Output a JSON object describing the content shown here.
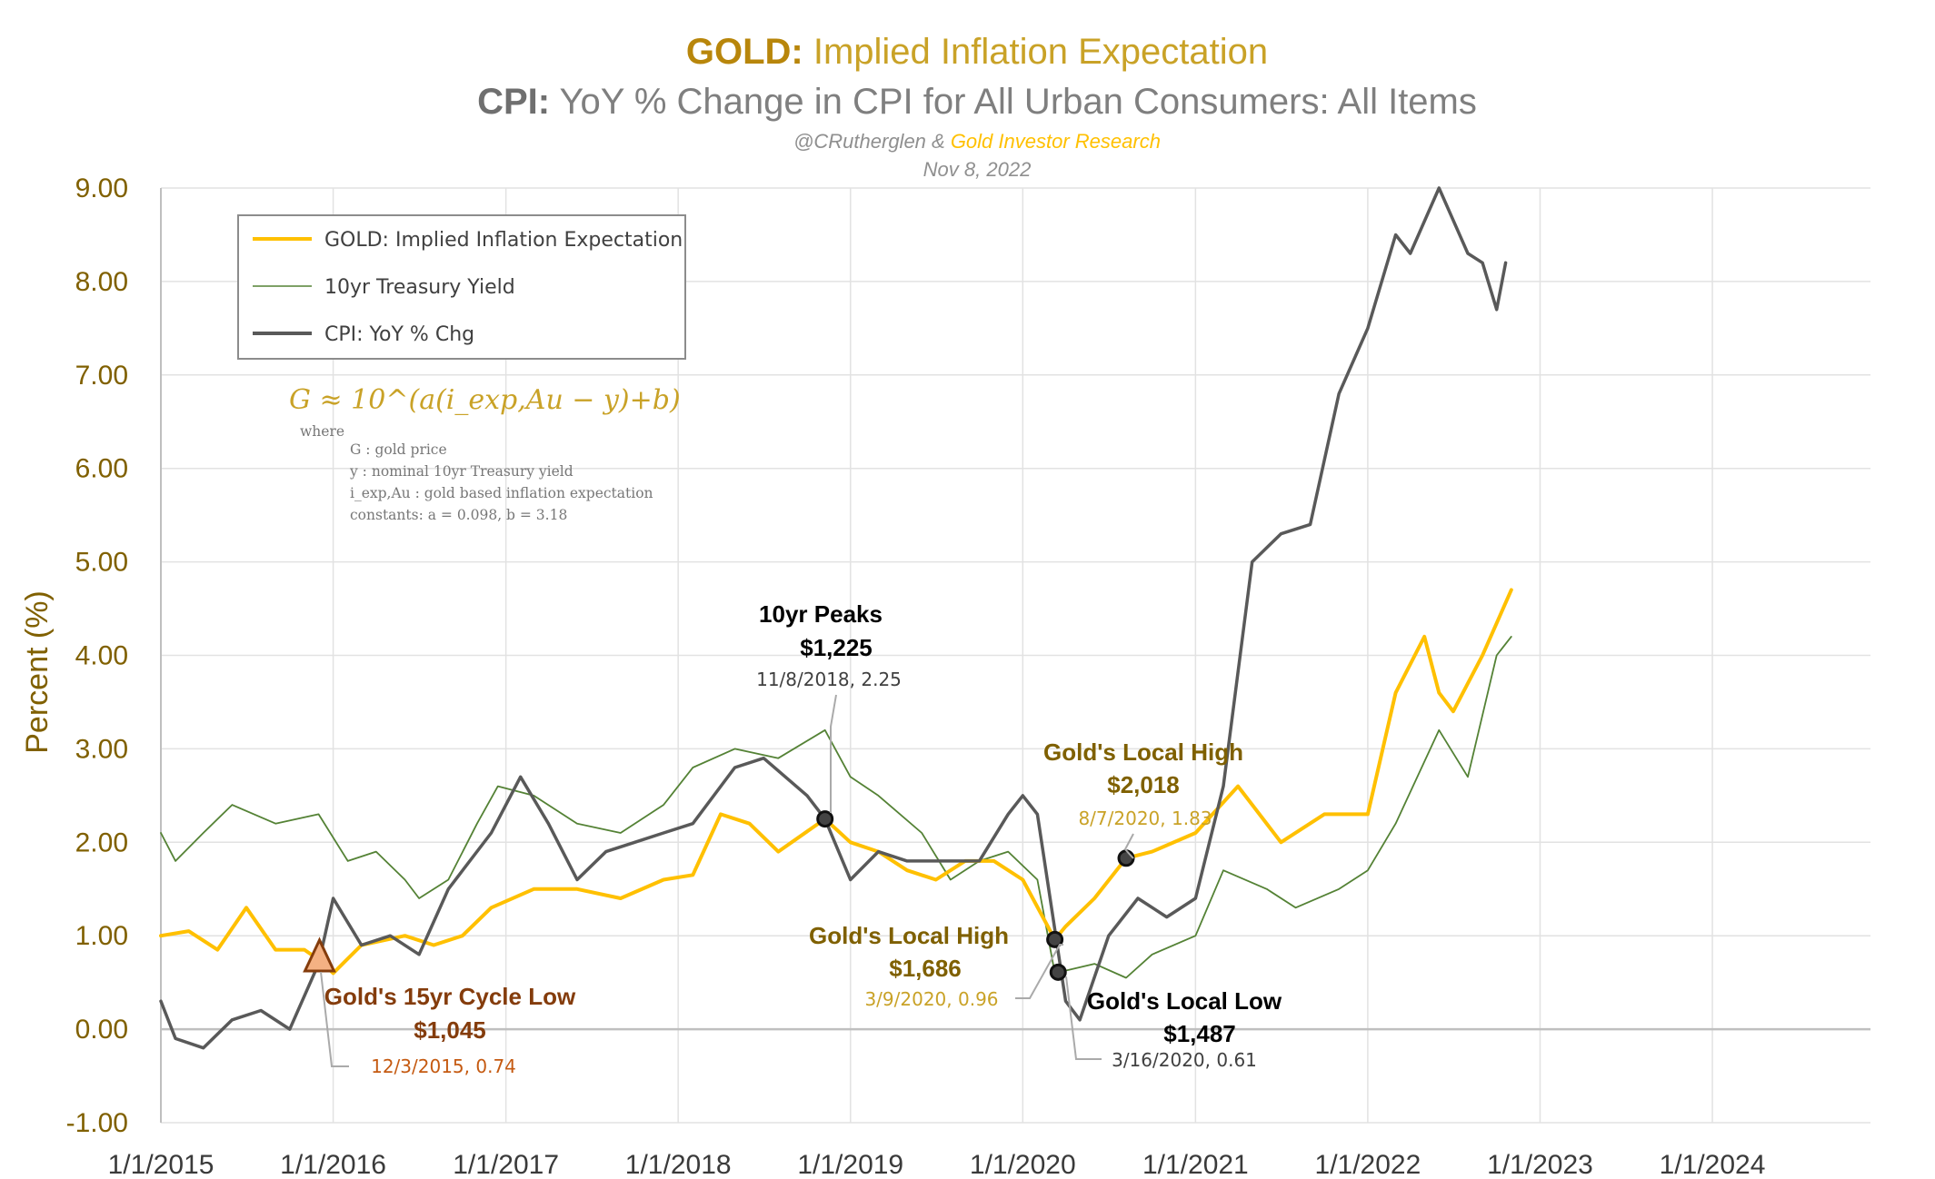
{
  "titles": {
    "line1_prefix": "GOLD:",
    "line1_rest": " Implied Inflation Expectation",
    "line2_prefix": "CPI:",
    "line2_rest": " YoY % Change in CPI for All Urban Consumers: All Items",
    "credit_author": "@CRutherglen &",
    "credit_org": " Gold Investor Research",
    "date": "Nov 8, 2022"
  },
  "colors": {
    "gold": "#FFC000",
    "gold_text": "#806000",
    "gold_light_text": "#C9A227",
    "treasury": "#548235",
    "cpi": "#595959",
    "cycle_low": "#843C0C",
    "cycle_low_sub": "#C55A11"
  },
  "chart_data": {
    "type": "line",
    "title": "GOLD: Implied Inflation Expectation / CPI: YoY % Change in CPI for All Urban Consumers: All Items",
    "ylabel": "Percent (%)",
    "xlabel": "",
    "ylim": [
      -1,
      9
    ],
    "xlim": [
      "2015-01-01",
      "2024-12-01"
    ],
    "grid": true,
    "legend_position": "top-left",
    "y_ticks": [
      "9.00",
      "8.00",
      "7.00",
      "6.00",
      "5.00",
      "4.00",
      "3.00",
      "2.00",
      "1.00",
      "0.00",
      "-1.00"
    ],
    "x_ticks": [
      "1/1/2015",
      "1/1/2016",
      "1/1/2017",
      "1/1/2018",
      "1/1/2019",
      "1/1/2020",
      "1/1/2021",
      "1/1/2022",
      "1/1/2023",
      "1/1/2024"
    ],
    "series": [
      {
        "name": "GOLD: Implied Inflation Expectation",
        "color": "#FFC000",
        "points": [
          [
            "2015-01-01",
            1.0
          ],
          [
            "2015-03-01",
            1.05
          ],
          [
            "2015-05-01",
            0.85
          ],
          [
            "2015-07-01",
            1.3
          ],
          [
            "2015-09-01",
            0.85
          ],
          [
            "2015-11-01",
            0.85
          ],
          [
            "2015-12-03",
            0.74
          ],
          [
            "2016-01-01",
            0.6
          ],
          [
            "2016-03-01",
            0.9
          ],
          [
            "2016-06-01",
            1.0
          ],
          [
            "2016-08-01",
            0.9
          ],
          [
            "2016-10-01",
            1.0
          ],
          [
            "2016-12-01",
            1.3
          ],
          [
            "2017-03-01",
            1.5
          ],
          [
            "2017-06-01",
            1.5
          ],
          [
            "2017-09-01",
            1.4
          ],
          [
            "2017-12-01",
            1.6
          ],
          [
            "2018-02-01",
            1.65
          ],
          [
            "2018-04-01",
            2.3
          ],
          [
            "2018-06-01",
            2.2
          ],
          [
            "2018-08-01",
            1.9
          ],
          [
            "2018-11-08",
            2.25
          ],
          [
            "2019-01-01",
            2.0
          ],
          [
            "2019-03-01",
            1.9
          ],
          [
            "2019-05-01",
            1.7
          ],
          [
            "2019-07-01",
            1.6
          ],
          [
            "2019-09-01",
            1.8
          ],
          [
            "2019-11-01",
            1.8
          ],
          [
            "2020-01-01",
            1.6
          ],
          [
            "2020-03-09",
            0.96
          ],
          [
            "2020-04-01",
            1.1
          ],
          [
            "2020-06-01",
            1.4
          ],
          [
            "2020-08-07",
            1.83
          ],
          [
            "2020-10-01",
            1.9
          ],
          [
            "2021-01-01",
            2.1
          ],
          [
            "2021-04-01",
            2.6
          ],
          [
            "2021-07-01",
            2.0
          ],
          [
            "2021-10-01",
            2.3
          ],
          [
            "2022-01-01",
            2.3
          ],
          [
            "2022-03-01",
            3.6
          ],
          [
            "2022-05-01",
            4.2
          ],
          [
            "2022-06-01",
            3.6
          ],
          [
            "2022-07-01",
            3.4
          ],
          [
            "2022-09-01",
            4.0
          ],
          [
            "2022-11-01",
            4.7
          ]
        ]
      },
      {
        "name": "10yr Treasury Yield",
        "color": "#548235",
        "points": [
          [
            "2015-01-01",
            2.1
          ],
          [
            "2015-02-01",
            1.8
          ],
          [
            "2015-04-01",
            2.1
          ],
          [
            "2015-06-01",
            2.4
          ],
          [
            "2015-09-01",
            2.2
          ],
          [
            "2015-12-01",
            2.3
          ],
          [
            "2016-02-01",
            1.8
          ],
          [
            "2016-04-01",
            1.9
          ],
          [
            "2016-06-01",
            1.6
          ],
          [
            "2016-07-01",
            1.4
          ],
          [
            "2016-09-01",
            1.6
          ],
          [
            "2016-11-01",
            2.2
          ],
          [
            "2016-12-15",
            2.6
          ],
          [
            "2017-03-01",
            2.5
          ],
          [
            "2017-06-01",
            2.2
          ],
          [
            "2017-09-01",
            2.1
          ],
          [
            "2017-12-01",
            2.4
          ],
          [
            "2018-02-01",
            2.8
          ],
          [
            "2018-05-01",
            3.0
          ],
          [
            "2018-08-01",
            2.9
          ],
          [
            "2018-11-08",
            3.2
          ],
          [
            "2019-01-01",
            2.7
          ],
          [
            "2019-03-01",
            2.5
          ],
          [
            "2019-06-01",
            2.1
          ],
          [
            "2019-08-01",
            1.6
          ],
          [
            "2019-10-01",
            1.8
          ],
          [
            "2019-12-01",
            1.9
          ],
          [
            "2020-02-01",
            1.6
          ],
          [
            "2020-03-09",
            0.6
          ],
          [
            "2020-06-01",
            0.7
          ],
          [
            "2020-08-07",
            0.55
          ],
          [
            "2020-10-01",
            0.8
          ],
          [
            "2021-01-01",
            1.0
          ],
          [
            "2021-03-01",
            1.7
          ],
          [
            "2021-06-01",
            1.5
          ],
          [
            "2021-08-01",
            1.3
          ],
          [
            "2021-11-01",
            1.5
          ],
          [
            "2022-01-01",
            1.7
          ],
          [
            "2022-03-01",
            2.2
          ],
          [
            "2022-06-01",
            3.2
          ],
          [
            "2022-08-01",
            2.7
          ],
          [
            "2022-10-01",
            4.0
          ],
          [
            "2022-11-01",
            4.2
          ]
        ]
      },
      {
        "name": "CPI: YoY % Chg",
        "color": "#595959",
        "points": [
          [
            "2015-01-01",
            0.3
          ],
          [
            "2015-02-01",
            -0.1
          ],
          [
            "2015-04-01",
            -0.2
          ],
          [
            "2015-06-01",
            0.1
          ],
          [
            "2015-08-01",
            0.2
          ],
          [
            "2015-10-01",
            0.0
          ],
          [
            "2015-12-01",
            0.7
          ],
          [
            "2016-01-01",
            1.4
          ],
          [
            "2016-03-01",
            0.9
          ],
          [
            "2016-05-01",
            1.0
          ],
          [
            "2016-07-01",
            0.8
          ],
          [
            "2016-09-01",
            1.5
          ],
          [
            "2016-12-01",
            2.1
          ],
          [
            "2017-02-01",
            2.7
          ],
          [
            "2017-04-01",
            2.2
          ],
          [
            "2017-06-01",
            1.6
          ],
          [
            "2017-08-01",
            1.9
          ],
          [
            "2017-10-01",
            2.0
          ],
          [
            "2017-12-01",
            2.1
          ],
          [
            "2018-02-01",
            2.2
          ],
          [
            "2018-05-01",
            2.8
          ],
          [
            "2018-07-01",
            2.9
          ],
          [
            "2018-10-01",
            2.5
          ],
          [
            "2018-11-08",
            2.25
          ],
          [
            "2019-01-01",
            1.6
          ],
          [
            "2019-03-01",
            1.9
          ],
          [
            "2019-05-01",
            1.8
          ],
          [
            "2019-07-01",
            1.8
          ],
          [
            "2019-10-01",
            1.8
          ],
          [
            "2019-12-01",
            2.3
          ],
          [
            "2020-01-01",
            2.5
          ],
          [
            "2020-02-01",
            2.3
          ],
          [
            "2020-04-01",
            0.3
          ],
          [
            "2020-05-01",
            0.1
          ],
          [
            "2020-07-01",
            1.0
          ],
          [
            "2020-09-01",
            1.4
          ],
          [
            "2020-11-01",
            1.2
          ],
          [
            "2021-01-01",
            1.4
          ],
          [
            "2021-03-01",
            2.6
          ],
          [
            "2021-05-01",
            5.0
          ],
          [
            "2021-07-01",
            5.3
          ],
          [
            "2021-09-01",
            5.4
          ],
          [
            "2021-11-01",
            6.8
          ],
          [
            "2022-01-01",
            7.5
          ],
          [
            "2022-03-01",
            8.5
          ],
          [
            "2022-04-01",
            8.3
          ],
          [
            "2022-06-01",
            9.0
          ],
          [
            "2022-08-01",
            8.3
          ],
          [
            "2022-09-01",
            8.2
          ],
          [
            "2022-10-01",
            7.7
          ],
          [
            "2022-10-20",
            8.2
          ]
        ]
      }
    ],
    "annotations": {
      "formula_main": "G ≈ 10^(a(i_exp,Au − y)+b)",
      "formula_where": "where",
      "formula_lines": [
        "G : gold price",
        "y : nominal 10yr Treasury yield",
        "i_exp,Au : gold based inflation expectation",
        "constants: a = 0.098, b = 3.18"
      ],
      "peak10": {
        "title": "10yr Peaks",
        "price": "$1,225",
        "sub": "11/8/2018, 2.25",
        "date": "2018-11-08",
        "value": 2.25
      },
      "local_high_2020": {
        "title": "Gold's Local High",
        "price": "$2,018",
        "sub": "8/7/2020, 1.83",
        "date": "2020-08-07",
        "value": 1.83
      },
      "local_high_mar": {
        "title": "Gold's Local High",
        "price": "$1,686",
        "sub": "3/9/2020, 0.96",
        "date": "2020-03-09",
        "value": 0.96
      },
      "local_low": {
        "title": "Gold's Local Low",
        "price": "$1,487",
        "sub": "3/16/2020, 0.61",
        "date": "2020-03-16",
        "value": 0.61
      },
      "cycle_low": {
        "title": "Gold's 15yr Cycle Low",
        "price": "$1,045",
        "sub": "12/3/2015, 0.74",
        "date": "2015-12-03",
        "value": 0.74
      }
    }
  }
}
